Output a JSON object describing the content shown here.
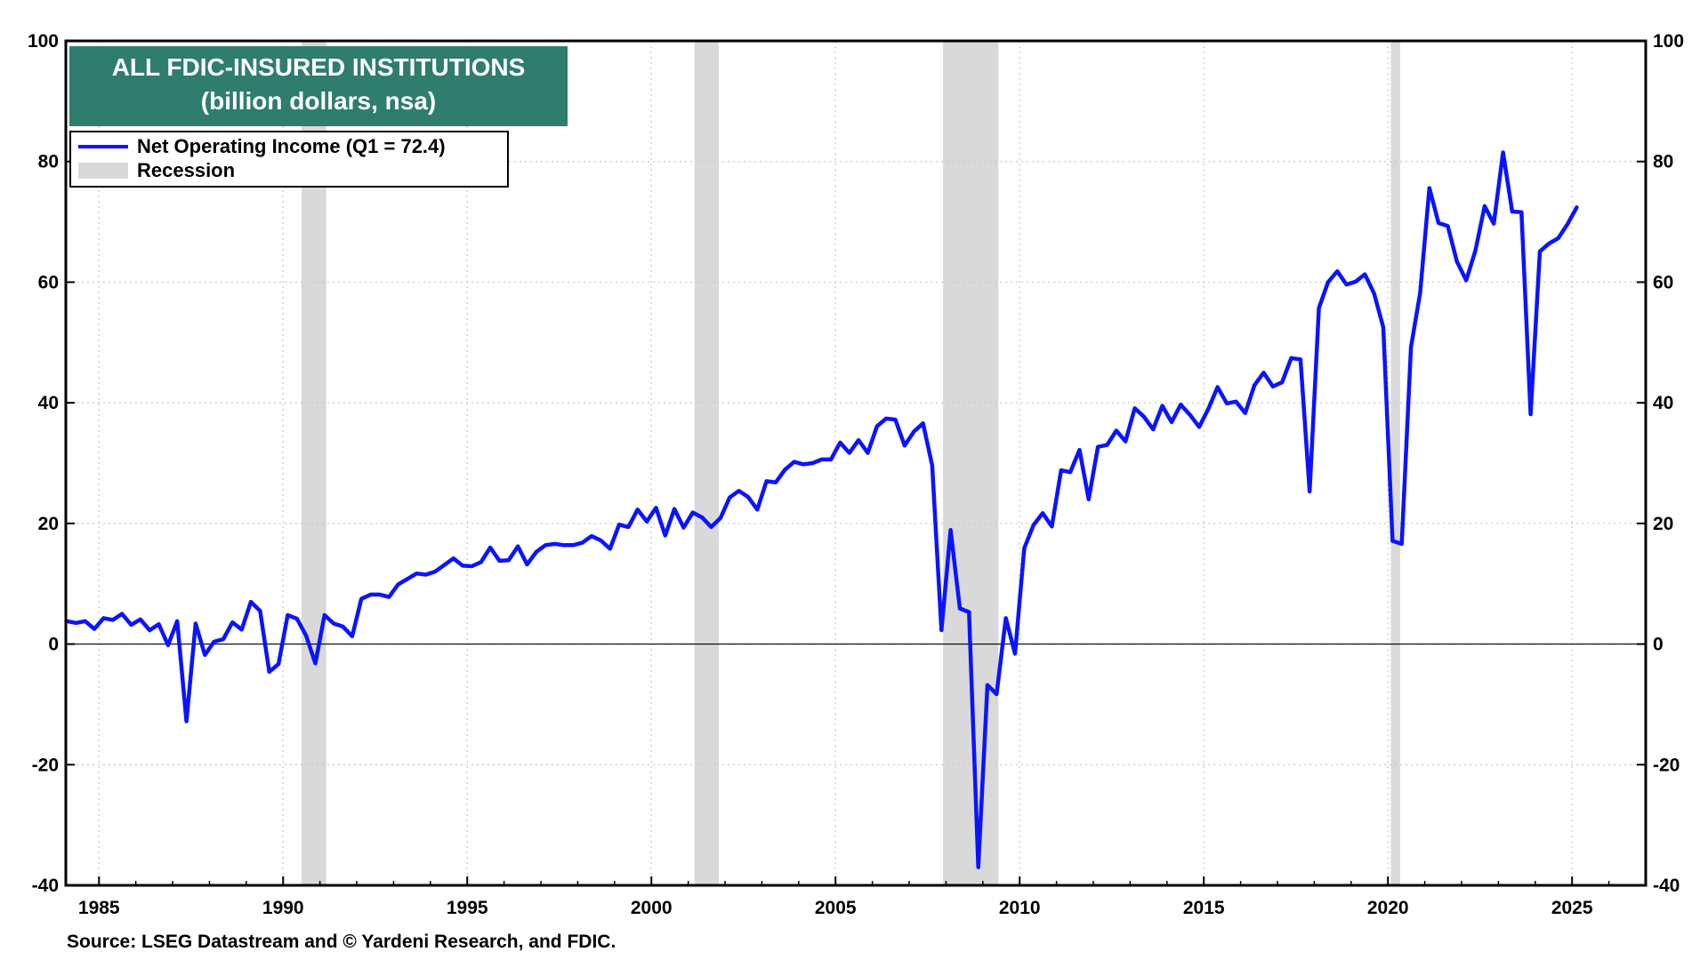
{
  "chart_data": {
    "type": "line",
    "title": "ALL FDIC-INSURED INSTITUTIONS",
    "subtitle": "(billion dollars, nsa)",
    "ylim": [
      -40,
      100
    ],
    "xlim": [
      1984.1,
      2027.0
    ],
    "y_ticks": [
      -40,
      -20,
      0,
      20,
      40,
      60,
      80,
      100
    ],
    "y_tick_labels": [
      "-40",
      "-20",
      "0",
      "20",
      "40",
      "60",
      "80",
      "100"
    ],
    "x_ticks": [
      1985,
      1990,
      1995,
      2000,
      2005,
      2010,
      2015,
      2020,
      2025
    ],
    "x_tick_labels": [
      "1985",
      "1990",
      "1995",
      "2000",
      "2005",
      "2010",
      "2015",
      "2020",
      "2025"
    ],
    "grid": true,
    "legend_position": "top-left",
    "series": [
      {
        "name": "Net Operating Income (Q1 = 72.4)",
        "color": "#0a14ff",
        "x_start": 1984.125,
        "x_step": 0.25,
        "values": [
          3.8,
          3.5,
          3.8,
          2.5,
          4.3,
          4.0,
          5.0,
          3.2,
          4.1,
          2.3,
          3.3,
          -0.2,
          3.8,
          -12.8,
          3.4,
          -1.8,
          0.4,
          0.8,
          3.6,
          2.4,
          7.0,
          5.5,
          -4.6,
          -3.3,
          4.8,
          4.2,
          1.4,
          -3.2,
          4.8,
          3.4,
          2.9,
          1.3,
          7.5,
          8.2,
          8.2,
          7.8,
          9.9,
          10.8,
          11.7,
          11.5,
          12.0,
          13.1,
          14.2,
          13.0,
          12.9,
          13.6,
          16.0,
          13.8,
          13.9,
          16.2,
          13.2,
          15.3,
          16.4,
          16.6,
          16.4,
          16.4,
          16.8,
          17.9,
          17.2,
          15.8,
          19.8,
          19.4,
          22.3,
          20.3,
          22.6,
          18.0,
          22.4,
          19.3,
          21.8,
          21.0,
          19.4,
          20.9,
          24.3,
          25.4,
          24.4,
          22.3,
          27.0,
          26.8,
          28.9,
          30.2,
          29.8,
          30.0,
          30.6,
          30.6,
          33.4,
          31.7,
          33.8,
          31.7,
          36.1,
          37.4,
          37.2,
          32.9,
          35.2,
          36.6,
          29.6,
          2.3,
          18.9,
          5.9,
          5.3,
          -37.0,
          -6.8,
          -8.3,
          4.3,
          -1.6,
          15.9,
          19.7,
          21.7,
          19.5,
          28.8,
          28.5,
          32.2,
          24.0,
          32.7,
          33.0,
          35.4,
          33.6,
          39.1,
          37.7,
          35.6,
          39.5,
          36.8,
          39.7,
          38.0,
          36.0,
          39.0,
          42.6,
          39.9,
          40.2,
          38.3,
          42.9,
          45.0,
          42.7,
          43.4,
          47.4,
          47.2,
          25.3,
          55.7,
          60.0,
          61.8,
          59.6,
          60.1,
          61.3,
          58.1,
          52.5,
          17.1,
          16.6,
          49.2,
          58.2,
          75.6,
          69.8,
          69.3,
          63.4,
          60.3,
          65.2,
          72.6,
          69.7,
          81.5,
          71.7,
          71.6,
          38.1,
          65.1,
          66.4,
          67.3,
          69.6,
          72.4
        ]
      }
    ],
    "recessions": [
      [
        1990.5,
        1991.17
      ],
      [
        2001.17,
        2001.83
      ],
      [
        2007.92,
        2009.42
      ],
      [
        2020.08,
        2020.33
      ]
    ],
    "recession_color": "#d9d9d9",
    "legend": [
      {
        "label": "Net Operating Income (Q1 = 72.4)",
        "kind": "line"
      },
      {
        "label": "Recession",
        "kind": "band"
      }
    ],
    "source": "Source: LSEG Datastream and © Yardeni Research, and FDIC.",
    "title_bg_color": "#2f7d6c",
    "line_color": "#0a14ff"
  }
}
